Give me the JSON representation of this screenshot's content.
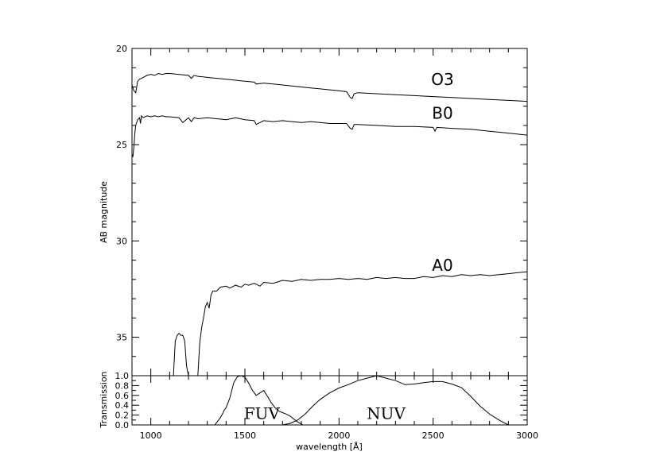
{
  "chart_data": [
    {
      "type": "line",
      "title": "",
      "xlabel": "",
      "ylabel": "AB magnitude",
      "xlim": [
        900,
        3000
      ],
      "ylim": [
        20,
        37
      ],
      "y_inverted": true,
      "x_ticks": [
        1000,
        1500,
        2000,
        2500,
        3000
      ],
      "y_ticks": [
        20,
        25,
        30,
        35
      ],
      "y_tick_labels": [
        "20",
        "25",
        "30",
        "35"
      ],
      "legend": "none",
      "series": [
        {
          "name": "O3",
          "label_at": [
            2550,
            21.9
          ],
          "x": [
            900,
            910,
            920,
            930,
            940,
            960,
            980,
            1000,
            1020,
            1040,
            1060,
            1080,
            1100,
            1150,
            1200,
            1215,
            1230,
            1250,
            1300,
            1350,
            1400,
            1450,
            1500,
            1550,
            1560,
            1600,
            1650,
            1700,
            1750,
            1800,
            1850,
            1900,
            1950,
            2000,
            2040,
            2060,
            2070,
            2080,
            2100,
            2200,
            2300,
            2400,
            2500,
            2600,
            2700,
            2800,
            2900,
            3000
          ],
          "y": [
            21.9,
            22.2,
            22.3,
            21.7,
            21.6,
            21.5,
            21.4,
            21.35,
            21.4,
            21.3,
            21.35,
            21.3,
            21.3,
            21.35,
            21.4,
            21.55,
            21.4,
            21.45,
            21.5,
            21.55,
            21.6,
            21.65,
            21.7,
            21.75,
            21.85,
            21.8,
            21.85,
            21.9,
            21.95,
            22.0,
            22.05,
            22.1,
            22.15,
            22.2,
            22.25,
            22.55,
            22.6,
            22.35,
            22.3,
            22.35,
            22.4,
            22.45,
            22.5,
            22.55,
            22.6,
            22.65,
            22.7,
            22.75
          ]
        },
        {
          "name": "B0",
          "label_at": [
            2550,
            23.65
          ],
          "x": [
            900,
            905,
            910,
            915,
            920,
            930,
            940,
            945,
            950,
            960,
            980,
            1000,
            1020,
            1040,
            1060,
            1080,
            1100,
            1150,
            1170,
            1200,
            1215,
            1230,
            1250,
            1300,
            1350,
            1400,
            1450,
            1500,
            1550,
            1560,
            1600,
            1650,
            1700,
            1750,
            1800,
            1850,
            1900,
            1950,
            2000,
            2040,
            2060,
            2070,
            2080,
            2100,
            2200,
            2300,
            2400,
            2500,
            2510,
            2520,
            2600,
            2700,
            2800,
            2900,
            3000
          ],
          "y": [
            25.5,
            25.6,
            25.1,
            24.4,
            24.0,
            23.7,
            23.6,
            23.9,
            23.5,
            23.6,
            23.5,
            23.55,
            23.5,
            23.55,
            23.5,
            23.55,
            23.55,
            23.6,
            23.85,
            23.6,
            23.8,
            23.6,
            23.65,
            23.6,
            23.65,
            23.7,
            23.6,
            23.7,
            23.75,
            23.95,
            23.75,
            23.8,
            23.75,
            23.8,
            23.85,
            23.8,
            23.85,
            23.9,
            23.9,
            23.9,
            24.15,
            24.2,
            23.95,
            23.95,
            24.0,
            24.05,
            24.05,
            24.1,
            24.3,
            24.1,
            24.15,
            24.2,
            24.3,
            24.4,
            24.5
          ]
        },
        {
          "name": "A0",
          "label_at": [
            2550,
            31.55
          ],
          "x": [
            1110,
            1120,
            1130,
            1140,
            1150,
            1160,
            1170,
            1180,
            1190,
            1200,
            1250,
            1260,
            1270,
            1280,
            1290,
            1300,
            1310,
            1320,
            1330,
            1350,
            1370,
            1400,
            1420,
            1450,
            1480,
            1500,
            1520,
            1550,
            1580,
            1600,
            1650,
            1700,
            1750,
            1800,
            1850,
            1900,
            1950,
            2000,
            2050,
            2100,
            2150,
            2200,
            2250,
            2300,
            2350,
            2400,
            2450,
            2500,
            2550,
            2600,
            2650,
            2700,
            2750,
            2800,
            2850,
            2900,
            2950,
            3000
          ],
          "y": [
            37,
            37,
            35.2,
            34.9,
            34.8,
            34.9,
            34.9,
            35.2,
            36.5,
            37,
            37,
            35.3,
            34.5,
            34.0,
            33.4,
            33.2,
            33.5,
            32.8,
            32.6,
            32.6,
            32.4,
            32.35,
            32.45,
            32.3,
            32.4,
            32.25,
            32.3,
            32.2,
            32.35,
            32.15,
            32.2,
            32.05,
            32.1,
            32.0,
            32.05,
            32.0,
            32.0,
            31.95,
            32.0,
            31.95,
            32.0,
            31.9,
            31.95,
            31.9,
            31.95,
            31.95,
            31.85,
            31.9,
            31.8,
            31.85,
            31.75,
            31.8,
            31.75,
            31.8,
            31.75,
            31.7,
            31.65,
            31.6
          ]
        }
      ]
    },
    {
      "type": "line",
      "title": "",
      "xlabel": "wavelength [Å]",
      "ylabel": "Transmission",
      "xlim": [
        900,
        3000
      ],
      "ylim": [
        0,
        1.0
      ],
      "x_ticks": [
        1000,
        1500,
        2000,
        2500,
        3000
      ],
      "x_tick_labels": [
        "1000",
        "1500",
        "2000",
        "2500",
        "3000"
      ],
      "y_ticks": [
        0.0,
        0.2,
        0.4,
        0.6,
        0.8,
        1.0
      ],
      "y_tick_labels": [
        "0.0",
        "0.2",
        "0.4",
        "0.6",
        "0.8",
        "1.0"
      ],
      "legend": "none",
      "series": [
        {
          "name": "FUV",
          "label_at": [
            1590,
            0.12
          ],
          "x": [
            1340,
            1350,
            1360,
            1370,
            1380,
            1390,
            1400,
            1420,
            1440,
            1460,
            1480,
            1500,
            1520,
            1540,
            1560,
            1580,
            1600,
            1620,
            1640,
            1660,
            1680,
            1700,
            1720,
            1740,
            1760,
            1780,
            1800,
            1806
          ],
          "y": [
            0.0,
            0.05,
            0.1,
            0.15,
            0.22,
            0.3,
            0.35,
            0.55,
            0.85,
            0.98,
            1.0,
            0.97,
            0.85,
            0.7,
            0.6,
            0.65,
            0.7,
            0.58,
            0.45,
            0.35,
            0.28,
            0.25,
            0.22,
            0.18,
            0.12,
            0.06,
            0.02,
            0.0
          ]
        },
        {
          "name": "NUV",
          "label_at": [
            2250,
            0.12
          ],
          "x": [
            1700,
            1740,
            1780,
            1820,
            1860,
            1900,
            1950,
            2000,
            2050,
            2100,
            2150,
            2200,
            2250,
            2300,
            2350,
            2400,
            2450,
            2500,
            2550,
            2600,
            2650,
            2700,
            2750,
            2800,
            2850,
            2900
          ],
          "y": [
            0.0,
            0.03,
            0.1,
            0.22,
            0.38,
            0.52,
            0.65,
            0.75,
            0.82,
            0.9,
            0.95,
            1.0,
            0.95,
            0.9,
            0.82,
            0.83,
            0.86,
            0.88,
            0.88,
            0.83,
            0.76,
            0.58,
            0.38,
            0.22,
            0.1,
            0.0
          ]
        }
      ]
    }
  ]
}
